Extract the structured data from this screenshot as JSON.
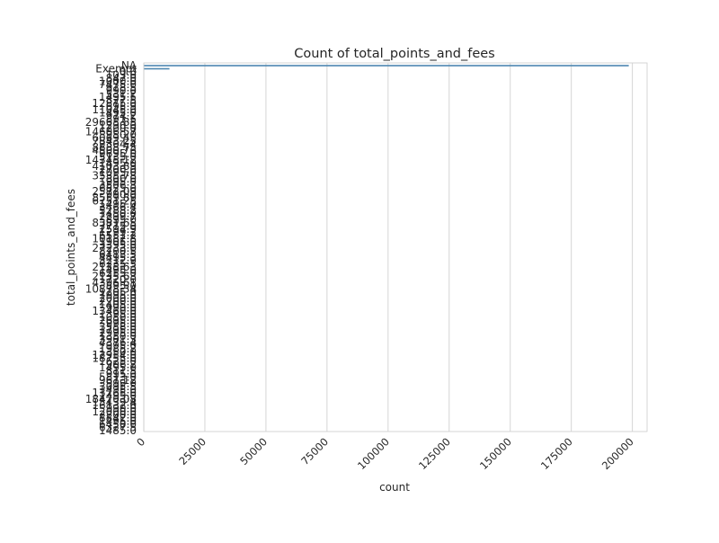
{
  "chart_data": {
    "type": "bar",
    "orientation": "horizontal",
    "title": "Count of total_points_and_fees",
    "xlabel": "count",
    "ylabel": "total_points_and_fees",
    "xlim": [
      0,
      206000
    ],
    "x_ticks": [
      0,
      25000,
      50000,
      75000,
      100000,
      125000,
      150000,
      175000,
      200000
    ],
    "x_tick_labels": [
      "0",
      "25000",
      "50000",
      "75000",
      "100000",
      "125000",
      "150000",
      "175000",
      "200000"
    ],
    "grid": true,
    "bar_color": "#4c87b0",
    "categories": [
      "NA",
      "Exempt",
      "0.0",
      "103.0",
      "847.0",
      "1000.0",
      "7475.0",
      "928.5",
      "990.0",
      "531.2",
      "1495.5",
      "827.5",
      "12875.0",
      "695.9",
      "11045.0",
      "1495.0",
      "974.2",
      "891.5",
      "29665.85",
      "1290.0",
      "1200.0",
      "14606.57",
      "950.0",
      "6069.45",
      "7843.25",
      "2304.4",
      "8888.75",
      "4500.76",
      "9695.0",
      "5135.0",
      "14345.12",
      "1495.0",
      "4103.89",
      "2700.0",
      "1095.0",
      "3535.78",
      "800.0",
      "1995.0",
      "3506.3",
      "6825.0",
      "2572.09",
      "990.0",
      "8559.89",
      "6751.25",
      "1495.0",
      "3466.4",
      "5288.2",
      "1450.0",
      "2299.7",
      "895.0",
      "8381.65",
      "7775.0",
      "2594.9",
      "1299.2",
      "6551.2",
      "10182.8",
      "1905.0",
      "3395.0",
      "27233.0",
      "8700.5",
      "6413.5",
      "4495.3",
      "3212.9",
      "6235.5",
      "2135.63",
      "1495.0",
      "6255.0",
      "2135.63",
      "1720.0",
      "4396.61",
      "895.0",
      "10878.34",
      "1205.0",
      "7995.0",
      "2000.0",
      "2200.0",
      "1405.0",
      "990.0",
      "13460.0",
      "1395.0",
      "1050.0",
      "2695.0",
      "995.0",
      "3558.0",
      "1795.0",
      "2995.0",
      "1350.0",
      "3901.3",
      "4376.4",
      "995.0",
      "1985.2",
      "1350.0",
      "12954.0",
      "18755.0",
      "1625.0",
      "906.2",
      "1495.0",
      "811.5",
      "995.0",
      "5813.0",
      "967.12",
      "999.0",
      "3095.5",
      "1495.0",
      "13765.0",
      "1495.0",
      "18470.08",
      "15439.4",
      "16132.0",
      "990.0",
      "12000.0",
      "2200.0",
      "8842.0",
      "1495.0",
      "6450.0",
      "6327.5",
      "1485.0"
    ],
    "values": [
      198500,
      10500,
      0,
      0,
      0,
      0,
      0,
      0,
      0,
      0,
      0,
      0,
      0,
      0,
      0,
      0,
      0,
      0,
      0,
      0,
      0,
      0,
      0,
      0,
      0,
      0,
      0,
      0,
      0,
      0,
      0,
      0,
      0,
      0,
      0,
      0,
      0,
      0,
      0,
      0,
      0,
      0,
      0,
      0,
      0,
      0,
      0,
      0,
      0,
      0,
      0,
      0,
      0,
      0,
      0,
      0,
      0,
      0,
      0,
      0,
      0,
      0,
      0,
      0,
      0,
      0,
      0,
      0,
      0,
      0,
      0,
      0,
      0,
      0,
      0,
      0,
      0,
      0,
      0,
      0,
      0,
      0,
      0,
      0,
      0,
      0,
      0,
      0,
      0,
      0,
      0,
      0,
      0,
      0,
      0,
      0,
      0,
      0,
      0,
      0,
      0,
      0,
      0,
      0,
      0,
      0,
      0,
      0,
      0,
      0,
      0,
      0,
      0,
      0,
      0,
      0,
      0
    ]
  }
}
